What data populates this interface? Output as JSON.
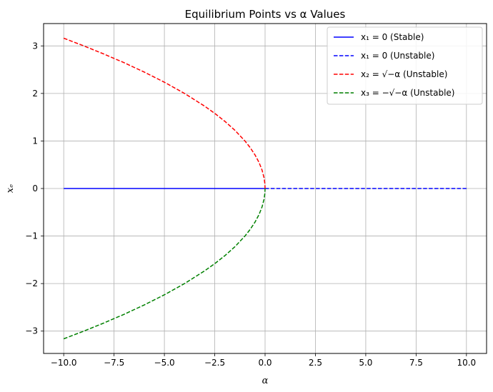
{
  "chart_data": {
    "type": "line",
    "title": "Equilibrium Points vs α Values",
    "xlabel": "α",
    "ylabel": "xₑ",
    "xlim": [
      -11.0,
      11.0
    ],
    "ylim": [
      -3.47,
      3.47
    ],
    "grid": true,
    "legend_position": "top-right",
    "x_ticks": [
      -10.0,
      -7.5,
      -5.0,
      -2.5,
      0.0,
      2.5,
      5.0,
      7.5,
      10.0
    ],
    "x_tick_labels": [
      "−10.0",
      "−7.5",
      "−5.0",
      "−2.5",
      "0.0",
      "2.5",
      "5.0",
      "7.5",
      "10.0"
    ],
    "y_ticks": [
      -3,
      -2,
      -1,
      0,
      1,
      2,
      3
    ],
    "y_tick_labels": [
      "−3",
      "−2",
      "−1",
      "0",
      "1",
      "2",
      "3"
    ],
    "series": [
      {
        "name": "x₁ = 0 (Stable)",
        "color": "#0000ff",
        "style": "solid",
        "x": [
          -10,
          0
        ],
        "y": [
          0,
          0
        ]
      },
      {
        "name": "x₁ = 0 (Unstable)",
        "color": "#0000ff",
        "style": "dashed",
        "x": [
          0,
          10
        ],
        "y": [
          0,
          0
        ]
      },
      {
        "name": "x₂ = √−α (Unstable)",
        "color": "#ff0000",
        "style": "dashed",
        "x": [
          -10,
          -9,
          -8,
          -7,
          -6,
          -5,
          -4,
          -3,
          -2.5,
          -2,
          -1.5,
          -1,
          -0.75,
          -0.5,
          -0.3,
          -0.15,
          -0.05,
          -0.01,
          0
        ],
        "y": [
          3.162,
          3.0,
          2.828,
          2.646,
          2.449,
          2.236,
          2.0,
          1.732,
          1.581,
          1.414,
          1.225,
          1.0,
          0.866,
          0.707,
          0.548,
          0.387,
          0.224,
          0.1,
          0
        ]
      },
      {
        "name": "x₃ = −√−α (Unstable)",
        "color": "#008000",
        "style": "dashed",
        "x": [
          -10,
          -9,
          -8,
          -7,
          -6,
          -5,
          -4,
          -3,
          -2.5,
          -2,
          -1.5,
          -1,
          -0.75,
          -0.5,
          -0.3,
          -0.15,
          -0.05,
          -0.01,
          0
        ],
        "y": [
          -3.162,
          -3.0,
          -2.828,
          -2.646,
          -2.449,
          -2.236,
          -2.0,
          -1.732,
          -1.581,
          -1.414,
          -1.225,
          -1.0,
          -0.866,
          -0.707,
          -0.548,
          -0.387,
          -0.224,
          -0.1,
          0
        ]
      }
    ]
  }
}
